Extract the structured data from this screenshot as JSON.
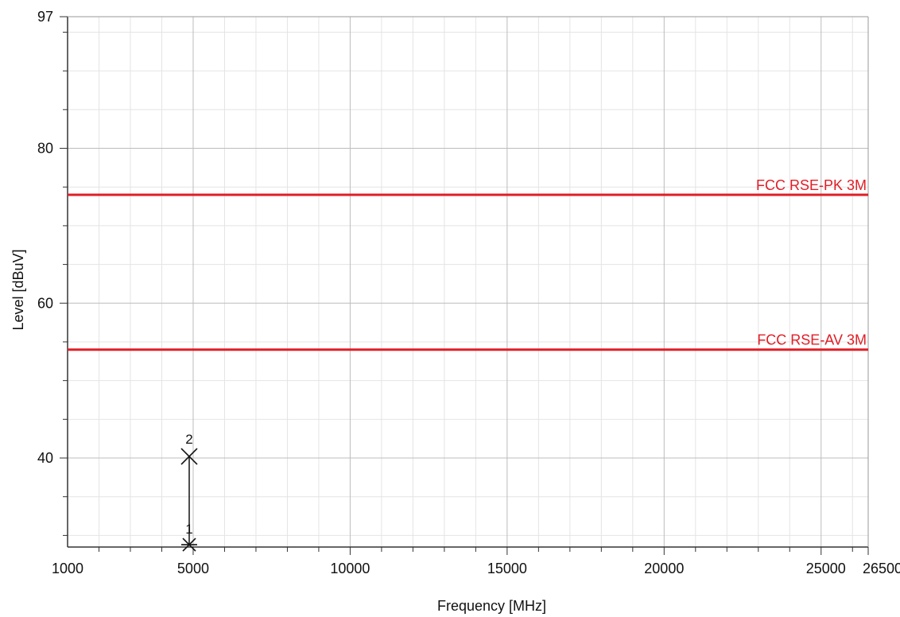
{
  "chart_data": {
    "type": "line",
    "title": "",
    "xlabel": "Frequency [MHz]",
    "ylabel": "Level [dBuV]",
    "xlim": [
      1000,
      26500
    ],
    "ylim": [
      28.5,
      97
    ],
    "x_ticks": [
      {
        "value": 1000,
        "label": "1000"
      },
      {
        "value": 5000,
        "label": "5000"
      },
      {
        "value": 10000,
        "label": "10000"
      },
      {
        "value": 15000,
        "label": "15000"
      },
      {
        "value": 20000,
        "label": "20000"
      },
      {
        "value": 25000,
        "label": "25000"
      },
      {
        "value": 26500,
        "label": "26500"
      }
    ],
    "y_ticks": [
      {
        "value": 40,
        "label": "40"
      },
      {
        "value": 60,
        "label": "60"
      },
      {
        "value": 80,
        "label": "80"
      },
      {
        "value": 97,
        "label": "97"
      }
    ],
    "grid": true,
    "limit_lines": [
      {
        "name": "FCC RSE-PK 3M",
        "value": 74,
        "color": "#e01e26"
      },
      {
        "name": "FCC RSE-AV 3M",
        "value": 54,
        "color": "#e01e26"
      }
    ],
    "markers": [
      {
        "label": "1",
        "x": 4874,
        "y": 28.8,
        "symbol": "asterisk"
      },
      {
        "label": "2",
        "x": 4874,
        "y": 40.2,
        "symbol": "x"
      }
    ]
  }
}
